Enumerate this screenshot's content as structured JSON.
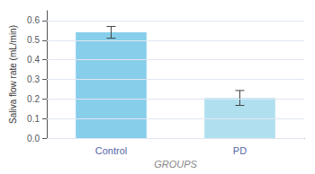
{
  "chart_data": {
    "type": "bar",
    "categories": [
      "Control",
      "PD"
    ],
    "values": [
      0.54,
      0.205
    ],
    "errors": [
      0.03,
      0.038
    ],
    "colors": [
      "#87CEEB",
      "#B0E0F0"
    ],
    "xlabel": "GROUPS",
    "ylabel": "Saliva flow rate (mL/min)",
    "ylim": [
      0.0,
      0.65
    ],
    "yticks": [
      {
        "value": 0.0,
        "label": "0.0"
      },
      0.1,
      0.2,
      0.3,
      0.4,
      0.5,
      0.6
    ],
    "grid": true
  }
}
